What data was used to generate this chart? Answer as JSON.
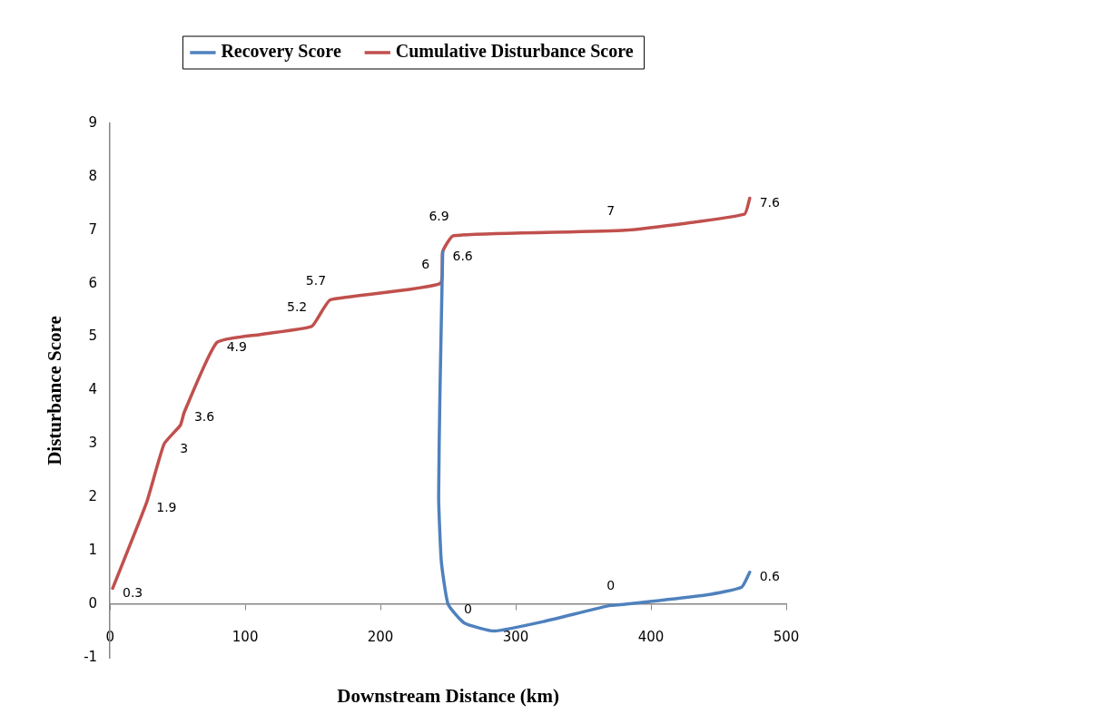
{
  "chart_data": {
    "type": "line",
    "xlabel": "Downstream Distance (km)",
    "ylabel": "Disturbance Score",
    "legend": "top",
    "grid": false,
    "marker": "none",
    "line_style": "solid",
    "xlim": [
      0,
      500
    ],
    "xticks": [
      0,
      100,
      200,
      300,
      400,
      500
    ],
    "ylim": [
      -1,
      9
    ],
    "yticks": [
      -1,
      0,
      1,
      2,
      3,
      4,
      5,
      6,
      7,
      8,
      9
    ],
    "series": [
      {
        "name": "Recovery Score",
        "color": "#4f81bd",
        "x": [
          246,
          244,
          243,
          245,
          250,
          262,
          284,
          321,
          368,
          381,
          442,
          467,
          473
        ],
        "values": [
          6.6,
          4,
          2,
          0.8,
          0,
          -0.35,
          -0.5,
          -0.32,
          -0.03,
          0,
          0.18,
          0.32,
          0.6
        ],
        "value_labels": [
          null,
          null,
          null,
          null,
          "0",
          null,
          null,
          null,
          null,
          "0",
          null,
          null,
          "0.6"
        ]
      },
      {
        "name": "Cumulative Disturbance Score",
        "color": "#c0504d",
        "x": [
          2,
          27,
          40,
          52,
          55,
          79,
          111,
          149,
          157,
          163,
          244,
          246,
          254,
          381,
          469,
          473
        ],
        "values": [
          0.3,
          1.9,
          3,
          3.35,
          3.6,
          4.9,
          5.05,
          5.2,
          5.5,
          5.7,
          6,
          6.6,
          6.9,
          7,
          7.3,
          7.6
        ],
        "value_labels": [
          "0.3",
          "1.9",
          "3",
          null,
          "3.6",
          "4.9",
          null,
          "5.2",
          null,
          "5.7",
          "6",
          "6.6",
          "6.9",
          "7",
          null,
          "7.6"
        ]
      }
    ]
  }
}
